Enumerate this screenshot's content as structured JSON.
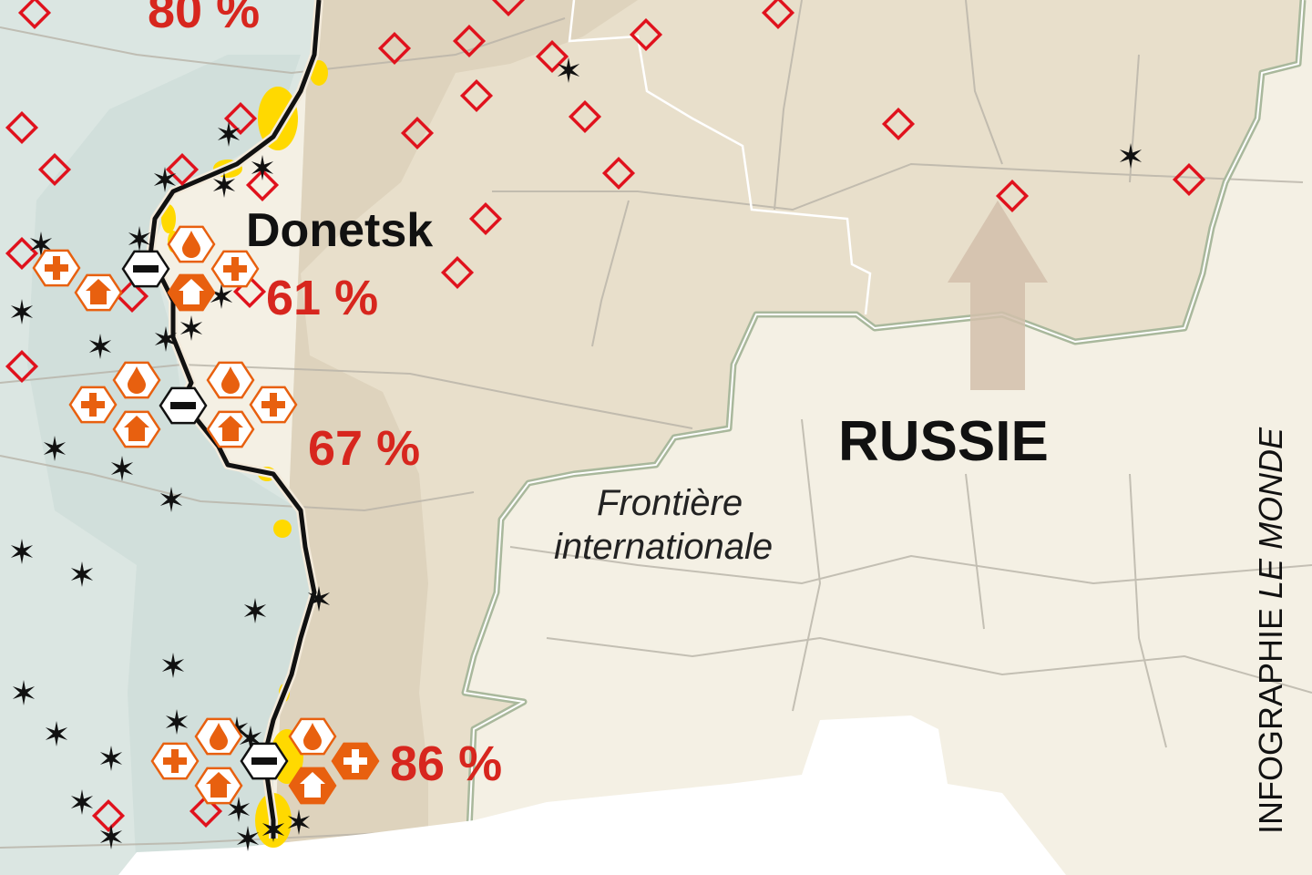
{
  "map": {
    "city_label": "Donetsk",
    "country_label": "RUSSIE",
    "border_label_line1": "Frontière",
    "border_label_line2": "internationale",
    "credit_prefix": "INFOGRAPHIE ",
    "credit_brand": "LE MONDE",
    "percentages": [
      {
        "value": "80 %"
      },
      {
        "value": "61 %"
      },
      {
        "value": "67 %"
      },
      {
        "value": "86 %"
      }
    ],
    "icon_types": [
      "water-drop-icon",
      "medical-cross-icon",
      "house-icon",
      "minus-icon",
      "star-icon",
      "diamond-icon",
      "arrow-up-icon"
    ],
    "colors": {
      "ukraine_controlled": "#dbe6e2",
      "occupied_zone": "#e2d8c4",
      "occupied_band": "#ddd0bb",
      "russia": "#f4f0e4",
      "front_line": "#111111",
      "fighting_zone": "#ffd900",
      "percent_text": "#d7261e",
      "icon_orange": "#e8600f",
      "diamond_red": "#e0121d",
      "border_green": "#a9b89c",
      "sea": "#ffffff"
    }
  }
}
